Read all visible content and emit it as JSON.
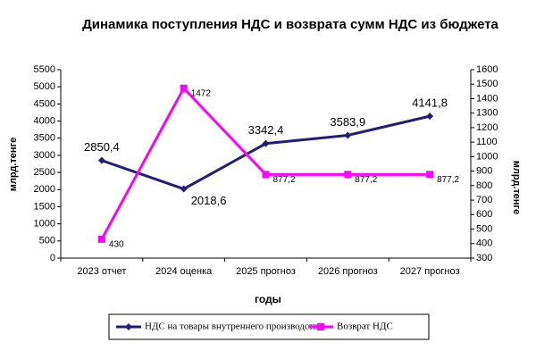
{
  "chart_data": {
    "type": "line",
    "title": "Динамика поступления НДС и возврата сумм НДС из бюджета",
    "categories": [
      "2023 отчет",
      "2024 оценка",
      "2025 прогноз",
      "2026 прогноз",
      "2027 прогноз"
    ],
    "xlabel": "годы",
    "ylabel": "млрд.тенге",
    "y2label": "млрд.тенге",
    "ylim": [
      0,
      5500
    ],
    "yticks": [
      0,
      500,
      1000,
      1500,
      2000,
      2500,
      3000,
      3500,
      4000,
      4500,
      5000,
      5500
    ],
    "y2lim": [
      300,
      1600
    ],
    "y2ticks": [
      300,
      400,
      500,
      600,
      700,
      800,
      900,
      1000,
      1100,
      1200,
      1300,
      1400,
      1500,
      1600
    ],
    "grid": false,
    "legend": "bottom",
    "series": [
      {
        "name": "НДС на товары внутреннего производства",
        "color": "#1f1f7a",
        "marker": "diamond",
        "values": [
          2850.4,
          2018.6,
          3342.4,
          3583.9,
          4141.8
        ],
        "value_labels": [
          "2850,4",
          "2018,6",
          "3342,4",
          "3583,9",
          "4141,8"
        ]
      },
      {
        "name": "Возврат НДС",
        "color": "#ff00ff",
        "marker": "square",
        "axis": "y2",
        "values": [
          430,
          1472,
          877.2,
          877.2,
          877.2
        ],
        "value_labels": [
          "430",
          "1472",
          "877,2",
          "877,2",
          "877,2"
        ]
      }
    ]
  }
}
